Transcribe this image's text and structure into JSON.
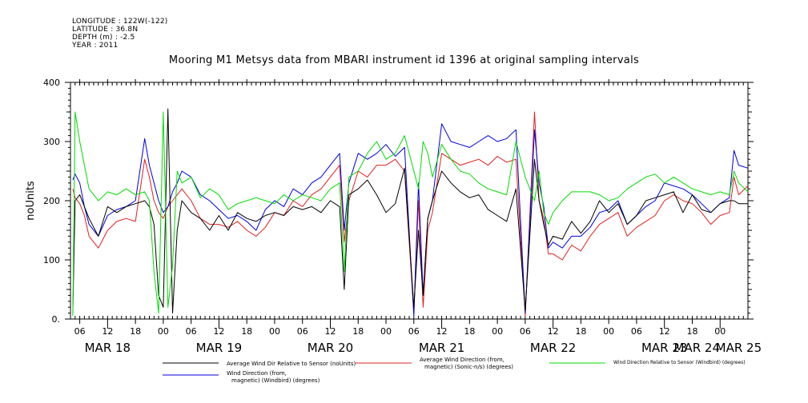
{
  "header": {
    "longitude": "LONGITUDE : 122W(-122)",
    "latitude": "LATITUDE : 36.8N",
    "depth": "DEPTH (m) : -2.5",
    "year": "YEAR : 2011"
  },
  "chart_data": {
    "type": "line",
    "title": "Mooring M1 Metsys data from MBARI instrument id 1396 at original sampling intervals",
    "ylabel": "noUnits",
    "xlabel": "",
    "ylim": [
      0,
      400
    ],
    "y_ticks": [
      0,
      100,
      200,
      300,
      400
    ],
    "y_tick_labels": [
      "0.",
      "100",
      "200",
      "300",
      "400"
    ],
    "x_unit": "hours since MAR 18 00:00 (2011)",
    "xlim": [
      4,
      150
    ],
    "x_hour_ticks": [
      6,
      12,
      18,
      24,
      30,
      36,
      42,
      48,
      54,
      60,
      66,
      72,
      78,
      84,
      90,
      96,
      102,
      108,
      114,
      120,
      126,
      132,
      138,
      144
    ],
    "x_hour_labels": [
      "06",
      "12",
      "18",
      "00",
      "06",
      "12",
      "18",
      "00",
      "06",
      "12",
      "18",
      "00",
      "06",
      "12",
      "18",
      "00",
      "06",
      "12",
      "18",
      "00",
      "06",
      "12",
      "18",
      "00"
    ],
    "x_day_ticks": [
      12,
      36,
      60,
      84,
      108,
      132,
      144
    ],
    "x_day_labels": [
      "MAR 18",
      "MAR 19",
      "MAR 20",
      "MAR 21",
      "MAR 22",
      "MAR 23",
      "MAR 24",
      "MAR 25"
    ],
    "x_day_positions": [
      12,
      36,
      60,
      84,
      108,
      132,
      139,
      148
    ],
    "grid": false,
    "legend_position": "bottom",
    "series": [
      {
        "name": "Average Wind Dir Relative to Sensor (noUnits)",
        "color": "#000000",
        "x": [
          4.5,
          5,
          6,
          7,
          8,
          10,
          12,
          14,
          16,
          18,
          20,
          21,
          22,
          23,
          24,
          25,
          26,
          27,
          28,
          30,
          32,
          34,
          36,
          38,
          40,
          42,
          44,
          46,
          48,
          50,
          52,
          54,
          56,
          58,
          60,
          62,
          63,
          64,
          66,
          68,
          70,
          72,
          74,
          76,
          78,
          79,
          80,
          81,
          82,
          84,
          86,
          88,
          90,
          92,
          94,
          96,
          98,
          100,
          102,
          104,
          105,
          106,
          107,
          108,
          110,
          112,
          114,
          116,
          118,
          120,
          122,
          124,
          126,
          128,
          130,
          132,
          134,
          136,
          138,
          140,
          142,
          144,
          146,
          147,
          148,
          150
        ],
        "y": [
          10,
          200,
          210,
          190,
          170,
          140,
          190,
          180,
          190,
          195,
          200,
          190,
          160,
          40,
          20,
          355,
          10,
          150,
          200,
          180,
          170,
          150,
          175,
          150,
          180,
          170,
          165,
          175,
          180,
          175,
          190,
          185,
          190,
          180,
          200,
          190,
          50,
          210,
          220,
          235,
          210,
          180,
          195,
          255,
          20,
          150,
          40,
          170,
          200,
          250,
          230,
          215,
          205,
          210,
          185,
          175,
          165,
          220,
          15,
          270,
          200,
          160,
          125,
          140,
          135,
          165,
          145,
          165,
          200,
          180,
          195,
          160,
          175,
          200,
          205,
          210,
          215,
          180,
          210,
          185,
          180,
          195,
          200,
          200,
          195,
          195
        ]
      },
      {
        "name": "Average Wind Direction (from, magnetic) (Sonic-n/s) (degrees)",
        "color": "#e02020",
        "x": [
          4.5,
          5,
          6,
          7,
          8,
          10,
          12,
          14,
          16,
          18,
          20,
          21,
          22,
          23,
          24,
          25,
          26,
          27,
          28,
          30,
          32,
          34,
          36,
          38,
          40,
          42,
          44,
          46,
          48,
          50,
          52,
          54,
          56,
          58,
          60,
          62,
          63,
          64,
          66,
          68,
          70,
          72,
          74,
          76,
          78,
          79,
          80,
          81,
          82,
          84,
          86,
          88,
          90,
          92,
          94,
          96,
          98,
          100,
          102,
          104,
          105,
          106,
          107,
          108,
          110,
          112,
          114,
          116,
          118,
          120,
          122,
          124,
          126,
          128,
          130,
          132,
          134,
          136,
          138,
          140,
          142,
          144,
          146,
          147,
          148,
          150
        ],
        "y": [
          220,
          205,
          195,
          175,
          140,
          120,
          150,
          165,
          170,
          165,
          270,
          240,
          200,
          180,
          170,
          190,
          200,
          210,
          220,
          200,
          170,
          160,
          160,
          155,
          165,
          150,
          140,
          155,
          180,
          175,
          200,
          190,
          210,
          220,
          240,
          260,
          130,
          200,
          250,
          240,
          260,
          260,
          270,
          250,
          10,
          200,
          20,
          150,
          180,
          280,
          270,
          260,
          265,
          270,
          260,
          275,
          265,
          270,
          5,
          350,
          200,
          170,
          110,
          110,
          100,
          125,
          115,
          140,
          160,
          170,
          180,
          140,
          155,
          165,
          175,
          200,
          210,
          200,
          195,
          180,
          160,
          175,
          180,
          240,
          210,
          225
        ]
      },
      {
        "name": "Wind Direction Relative to Sensor (Windbird) (degrees)",
        "color": "#00dd00",
        "x": [
          4.5,
          5,
          6,
          7,
          8,
          10,
          12,
          14,
          16,
          18,
          20,
          21,
          22,
          23,
          24,
          25,
          26,
          27,
          28,
          30,
          32,
          34,
          36,
          38,
          40,
          42,
          44,
          46,
          48,
          50,
          52,
          54,
          56,
          58,
          60,
          62,
          63,
          64,
          66,
          68,
          70,
          72,
          74,
          76,
          78,
          79,
          80,
          81,
          82,
          84,
          86,
          88,
          90,
          92,
          94,
          96,
          98,
          100,
          102,
          104,
          105,
          106,
          107,
          108,
          110,
          112,
          114,
          116,
          118,
          120,
          122,
          124,
          126,
          128,
          130,
          132,
          134,
          136,
          138,
          140,
          142,
          144,
          146,
          147,
          148,
          150
        ],
        "y": [
          5,
          350,
          300,
          260,
          220,
          200,
          215,
          210,
          220,
          210,
          215,
          200,
          80,
          10,
          350,
          20,
          90,
          250,
          230,
          240,
          205,
          220,
          210,
          185,
          195,
          200,
          205,
          200,
          195,
          210,
          200,
          210,
          205,
          200,
          220,
          230,
          80,
          240,
          250,
          280,
          300,
          270,
          280,
          310,
          250,
          220,
          300,
          280,
          240,
          295,
          270,
          250,
          245,
          230,
          220,
          215,
          210,
          300,
          240,
          200,
          250,
          180,
          160,
          180,
          200,
          215,
          215,
          215,
          210,
          200,
          205,
          220,
          230,
          240,
          245,
          230,
          240,
          230,
          220,
          215,
          210,
          215,
          210,
          250,
          230,
          215
        ]
      },
      {
        "name": "Wind Direction (from, magnetic) (Windbird) (degrees)",
        "color": "#0000dd",
        "x": [
          4.5,
          5,
          6,
          7,
          8,
          10,
          12,
          14,
          16,
          18,
          20,
          21,
          22,
          23,
          24,
          25,
          26,
          27,
          28,
          30,
          32,
          34,
          36,
          38,
          40,
          42,
          44,
          46,
          48,
          50,
          52,
          54,
          56,
          58,
          60,
          62,
          63,
          64,
          66,
          68,
          70,
          72,
          74,
          76,
          78,
          79,
          80,
          81,
          82,
          84,
          86,
          88,
          90,
          92,
          94,
          96,
          98,
          100,
          102,
          104,
          105,
          106,
          107,
          108,
          110,
          112,
          114,
          116,
          118,
          120,
          122,
          124,
          126,
          128,
          130,
          132,
          134,
          136,
          138,
          140,
          142,
          144,
          146,
          147,
          148,
          150
        ],
        "y": [
          235,
          245,
          230,
          190,
          160,
          140,
          175,
          185,
          190,
          200,
          305,
          260,
          230,
          200,
          180,
          190,
          215,
          230,
          250,
          240,
          210,
          200,
          185,
          170,
          175,
          165,
          150,
          185,
          200,
          190,
          220,
          210,
          230,
          240,
          260,
          280,
          150,
          230,
          280,
          270,
          280,
          295,
          275,
          290,
          5,
          230,
          40,
          170,
          200,
          330,
          300,
          295,
          290,
          300,
          310,
          300,
          305,
          320,
          10,
          320,
          230,
          190,
          120,
          130,
          120,
          140,
          140,
          155,
          180,
          185,
          200,
          160,
          175,
          190,
          200,
          230,
          225,
          220,
          210,
          195,
          180,
          195,
          205,
          285,
          260,
          255
        ]
      }
    ]
  }
}
